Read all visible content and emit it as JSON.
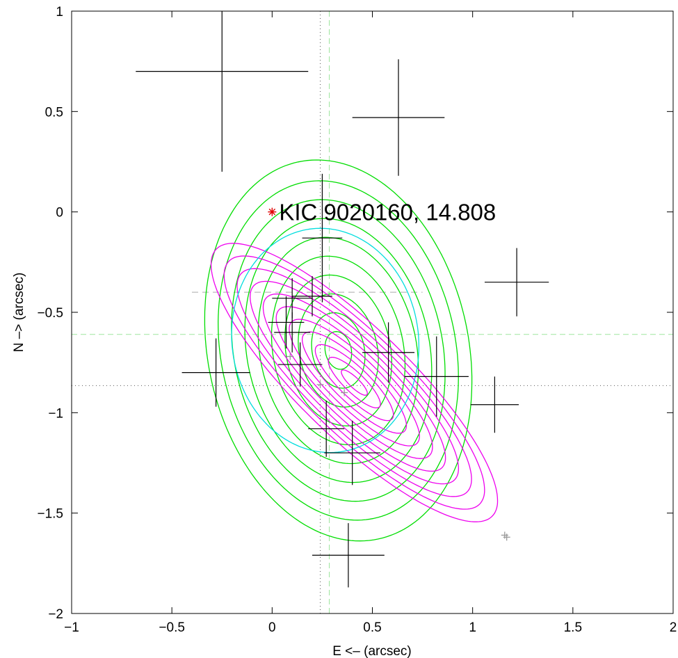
{
  "chart_data": {
    "type": "scatter",
    "title": "",
    "xlabel": "E <– (arcsec)",
    "ylabel": "N –> (arcsec)",
    "xlim": [
      -1,
      2
    ],
    "ylim": [
      -2,
      1
    ],
    "x_ticks": [
      -1,
      -0.5,
      0,
      0.5,
      1,
      1.5,
      2
    ],
    "x_tick_labels": [
      "−1",
      "−0.5",
      "0",
      "0.5",
      "1",
      "1.5",
      "2"
    ],
    "y_ticks": [
      -2,
      -1.5,
      -1,
      -0.5,
      0,
      0.5,
      1
    ],
    "y_tick_labels": [
      "−2",
      "−1.5",
      "−1",
      "−0.5",
      "0",
      "0.5",
      "1"
    ],
    "grid": false,
    "target": {
      "x": 0,
      "y": 0,
      "color": "#e00000",
      "label": "KIC 9020160, 14.808"
    },
    "error_crosses": [
      {
        "x": -0.25,
        "y": 0.7,
        "xerr": 0.43,
        "yerr": 0.5
      },
      {
        "x": 0.63,
        "y": 0.47,
        "xerr": 0.23,
        "yerr": 0.29
      },
      {
        "x": 1.22,
        "y": -0.35,
        "xerr": 0.16,
        "yerr": 0.17
      },
      {
        "x": 0.25,
        "y": -0.13,
        "xerr": 0.1,
        "yerr": 0.32
      },
      {
        "x": -0.28,
        "y": -0.8,
        "xerr": 0.17,
        "yerr": 0.17
      },
      {
        "x": 0.1,
        "y": -0.43,
        "xerr": 0.1,
        "yerr": 0.1
      },
      {
        "x": 0.2,
        "y": -0.42,
        "xerr": 0.1,
        "yerr": 0.1
      },
      {
        "x": 0.07,
        "y": -0.55,
        "xerr": 0.09,
        "yerr": 0.13
      },
      {
        "x": 0.1,
        "y": -0.6,
        "xerr": 0.09,
        "yerr": 0.1
      },
      {
        "x": 0.14,
        "y": -0.76,
        "xerr": 0.11,
        "yerr": 0.11
      },
      {
        "x": 0.58,
        "y": -0.7,
        "xerr": 0.13,
        "yerr": 0.15
      },
      {
        "x": 0.82,
        "y": -0.82,
        "xerr": 0.16,
        "yerr": 0.2
      },
      {
        "x": 1.11,
        "y": -0.96,
        "xerr": 0.12,
        "yerr": 0.14
      },
      {
        "x": 0.27,
        "y": -1.08,
        "xerr": 0.09,
        "yerr": 0.14
      },
      {
        "x": 0.4,
        "y": -1.2,
        "xerr": 0.14,
        "yerr": 0.16
      },
      {
        "x": 0.38,
        "y": -1.71,
        "xerr": 0.18,
        "yerr": 0.16
      }
    ],
    "gray_points": [
      {
        "x": 0.09,
        "y": -0.72
      },
      {
        "x": 0.24,
        "y": -0.86
      },
      {
        "x": 0.36,
        "y": -0.9
      },
      {
        "x": 1.16,
        "y": -1.61
      },
      {
        "x": 1.17,
        "y": -1.62
      }
    ],
    "gray_dashed_segment": {
      "x": [
        -0.4,
        0.75
      ],
      "y": -0.4
    },
    "reference_lines": [
      {
        "orientation": "vertical",
        "value": 0.24,
        "color": "#555555",
        "style": "dotted"
      },
      {
        "orientation": "horizontal",
        "value": -0.865,
        "color": "#555555",
        "style": "dotted"
      },
      {
        "orientation": "vertical",
        "value": 0.285,
        "color": "#9ee59e",
        "style": "dashed"
      },
      {
        "orientation": "horizontal",
        "value": -0.61,
        "color": "#9ee59e",
        "style": "dashed"
      }
    ],
    "contour_sets": [
      {
        "color": "#00dd00",
        "center": [
          0.33,
          -0.69
        ],
        "angle_deg": -78,
        "radii": [
          [
            0.095,
            0.065
          ],
          [
            0.19,
            0.13
          ],
          [
            0.285,
            0.195
          ],
          [
            0.38,
            0.26
          ],
          [
            0.475,
            0.325
          ],
          [
            0.57,
            0.39
          ],
          [
            0.665,
            0.455
          ],
          [
            0.76,
            0.52
          ],
          [
            0.855,
            0.585
          ],
          [
            0.96,
            0.65
          ]
        ]
      },
      {
        "color": "#ee00ee",
        "center": [
          0.41,
          -0.85
        ],
        "angle_deg": -44,
        "radii": [
          [
            0.087,
            0.025
          ],
          [
            0.174,
            0.05
          ],
          [
            0.261,
            0.075
          ],
          [
            0.348,
            0.1
          ],
          [
            0.435,
            0.125
          ],
          [
            0.522,
            0.15
          ],
          [
            0.609,
            0.175
          ],
          [
            0.696,
            0.2
          ],
          [
            0.783,
            0.225
          ],
          [
            0.87,
            0.25
          ],
          [
            0.957,
            0.275
          ]
        ]
      },
      {
        "color": "#00dddd",
        "center": [
          0.265,
          -0.64
        ],
        "angle_deg": -82,
        "radii": [
          [
            0.56,
            0.465
          ]
        ]
      }
    ]
  }
}
